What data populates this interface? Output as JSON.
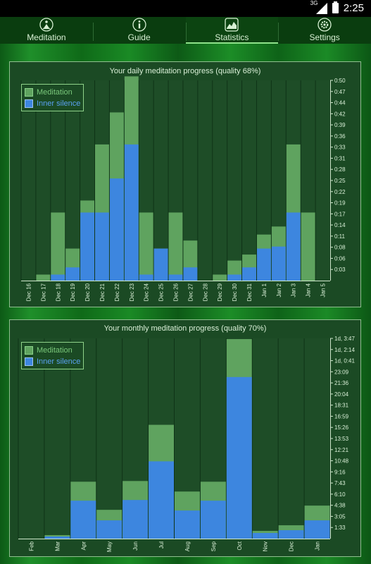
{
  "status_bar": {
    "network": "3G",
    "time": "2:25"
  },
  "tabs": [
    {
      "label": "Meditation",
      "icon": "meditation-figure-icon",
      "active": false
    },
    {
      "label": "Guide",
      "icon": "info-icon",
      "active": false
    },
    {
      "label": "Statistics",
      "icon": "chart-icon",
      "active": true
    },
    {
      "label": "Settings",
      "icon": "gear-icon",
      "active": false
    }
  ],
  "legend": {
    "meditation": "Meditation",
    "inner_silence": "Inner silence"
  },
  "colors": {
    "meditation": "#5fa35f",
    "inner_silence": "#3d86df",
    "panel_bg": "#1b4a24",
    "tab_bar": "#0a3d0f",
    "tab_indicator": "#8ee28a"
  },
  "chart_data": [
    {
      "type": "bar",
      "title": "Your daily meditation progress (quality 68%)",
      "categories": [
        "Dec 16",
        "Dec 17",
        "Dec 18",
        "Dec 19",
        "Dec 20",
        "Dec 21",
        "Dec 22",
        "Dec 23",
        "Dec 24",
        "Dec 25",
        "Dec 26",
        "Dec 27",
        "Dec 28",
        "Dec 29",
        "Dec 30",
        "Dec 31",
        "Jan 1",
        "Jan 2",
        "Jan 3",
        "Jan 4",
        "Jan 5"
      ],
      "y_ticks": [
        "0:03",
        "0:06",
        "0:08",
        "0:11",
        "0:14",
        "0:17",
        "0:19",
        "0:22",
        "0:25",
        "0:28",
        "0:31",
        "0:33",
        "0:36",
        "0:39",
        "0:42",
        "0:44",
        "0:47",
        "0:50"
      ],
      "y_axis_side": "right",
      "ylim_minutes": [
        0,
        50
      ],
      "legend_position": "top-left",
      "series": [
        {
          "name": "Meditation",
          "values_minutes": [
            0,
            1.5,
            17,
            8,
            20,
            34,
            42,
            51,
            17,
            8,
            17,
            10,
            0,
            1.5,
            5,
            6.5,
            11.5,
            13.5,
            34,
            17,
            0
          ]
        },
        {
          "name": "Inner silence",
          "values_minutes": [
            0,
            0,
            1.5,
            3.3,
            17,
            17,
            25.5,
            34,
            1.5,
            8,
            1.5,
            3.3,
            0,
            0,
            1.5,
            3.3,
            8,
            8.5,
            17,
            0,
            0
          ]
        }
      ]
    },
    {
      "type": "bar",
      "title": "Your monthly meditation progress (quality 70%)",
      "categories": [
        "Feb",
        "Mar",
        "Apr",
        "May",
        "Jun",
        "Jul",
        "Aug",
        "Sep",
        "Oct",
        "Nov",
        "Dec",
        "Jan"
      ],
      "y_ticks": [
        "1:33",
        "3:05",
        "4:38",
        "6:10",
        "7:43",
        "9:16",
        "10:48",
        "12:21",
        "13:53",
        "15:26",
        "16:59",
        "18:31",
        "20:04",
        "21:36",
        "23:09",
        "1d, 0:41",
        "1d, 2:14",
        "1d, 3:47"
      ],
      "y_axis_side": "right",
      "ylim_hours": [
        0,
        28.5
      ],
      "legend_position": "top-left",
      "series": [
        {
          "name": "Meditation",
          "values_hours": [
            0,
            0.5,
            8.1,
            4.1,
            8.2,
            16.2,
            6.7,
            8.1,
            28.4,
            1.1,
            1.9,
            4.7
          ]
        },
        {
          "name": "Inner silence",
          "values_hours": [
            0,
            0.3,
            5.4,
            2.6,
            5.5,
            11.0,
            4.0,
            5.4,
            23.0,
            0.8,
            1.2,
            2.6
          ]
        }
      ]
    }
  ]
}
